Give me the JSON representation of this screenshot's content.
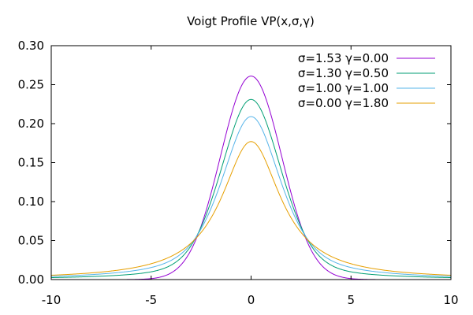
{
  "chart_data": {
    "type": "line",
    "title": "Voigt Profile VP(x,σ,γ)",
    "xlabel": "",
    "ylabel": "",
    "xlim": [
      -10,
      10
    ],
    "ylim": [
      0,
      0.3
    ],
    "x_ticks": [
      -10,
      -5,
      0,
      5,
      10
    ],
    "x_tick_labels": [
      "-10",
      "-5",
      "0",
      "5",
      "10"
    ],
    "y_ticks": [
      0,
      0.05,
      0.1,
      0.15,
      0.2,
      0.25,
      0.3
    ],
    "y_tick_labels": [
      "0.00",
      "0.05",
      "0.10",
      "0.15",
      "0.20",
      "0.25",
      "0.30"
    ],
    "grid": false,
    "legend_position": "top-right",
    "series": [
      {
        "name": "σ=1.53 γ=0.00",
        "sigma": 1.53,
        "gamma": 0.0,
        "color": "#9400d3",
        "peak": 0.261
      },
      {
        "name": "σ=1.30 γ=0.50",
        "sigma": 1.3,
        "gamma": 0.5,
        "color": "#009e73",
        "peak": 0.231
      },
      {
        "name": "σ=1.00 γ=1.00",
        "sigma": 1.0,
        "gamma": 1.0,
        "color": "#56b4e9",
        "peak": 0.209
      },
      {
        "name": "σ=0.00 γ=1.80",
        "sigma": 0.0,
        "gamma": 1.8,
        "color": "#e69f00",
        "peak": 0.177
      }
    ]
  }
}
